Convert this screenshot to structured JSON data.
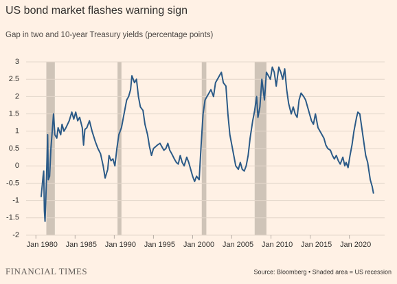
{
  "chart_data": {
    "type": "line",
    "title": "US bond market flashes warning sign",
    "subtitle": "Gap in two and 10-year Treasury yields (percentage points)",
    "source": "Source: Bloomberg • Shaded area = US recession",
    "brand": "FINANCIAL TIMES",
    "color": "#2b5a87",
    "recession_color": "#cfc4b8",
    "grid": true,
    "xlim": [
      "1978-10",
      "2024-07"
    ],
    "xticks": [
      {
        "value": "1980-01",
        "label": "Jan 1980"
      },
      {
        "value": "1985-01",
        "label": "Jan 1985"
      },
      {
        "value": "1990-01",
        "label": "Jan 1990"
      },
      {
        "value": "1995-01",
        "label": "Jan 1995"
      },
      {
        "value": "2000-01",
        "label": "Jan 2000"
      },
      {
        "value": "2005-01",
        "label": "Jan 2005"
      },
      {
        "value": "2010-01",
        "label": "Jan 2010"
      },
      {
        "value": "2015-01",
        "label": "Jan 2015"
      },
      {
        "value": "2020-01",
        "label": "Jan 2020"
      }
    ],
    "ylim": [
      -2,
      3
    ],
    "yticks": [
      3,
      2.5,
      2,
      1.5,
      1,
      0.5,
      0,
      -0.5,
      -1,
      -1.5,
      -2
    ],
    "recessions": [
      [
        "1981-05",
        "1982-06"
      ],
      [
        "1990-06",
        "1990-12"
      ],
      [
        "2001-03",
        "2001-10"
      ],
      [
        "2007-12",
        "2009-06"
      ]
    ],
    "x": [
      "1980-09",
      "1980-12",
      "1981-01",
      "1981-02",
      "1981-03",
      "1981-05",
      "1981-07",
      "1981-08",
      "1981-10",
      "1981-12",
      "1982-02",
      "1982-04",
      "1982-06",
      "1982-09",
      "1982-11",
      "1983-01",
      "1983-03",
      "1983-05",
      "1983-08",
      "1983-11",
      "1984-04",
      "1984-08",
      "1984-11",
      "1985-02",
      "1985-05",
      "1985-08",
      "1985-12",
      "1986-02",
      "1986-04",
      "1986-07",
      "1986-11",
      "1987-03",
      "1987-08",
      "1987-12",
      "1988-04",
      "1988-08",
      "1988-11",
      "1989-03",
      "1989-05",
      "1989-08",
      "1989-11",
      "1990-02",
      "1990-05",
      "1990-08",
      "1990-12",
      "1991-04",
      "1991-08",
      "1991-11",
      "1992-02",
      "1992-04",
      "1992-08",
      "1992-11",
      "1993-02",
      "1993-05",
      "1993-09",
      "1993-12",
      "1994-04",
      "1994-07",
      "1994-10",
      "1995-01",
      "1995-04",
      "1995-07",
      "1995-11",
      "1996-02",
      "1996-05",
      "1996-08",
      "1996-11",
      "1997-02",
      "1997-05",
      "1997-09",
      "1997-12",
      "1998-03",
      "1998-06",
      "1998-09",
      "1998-12",
      "1999-04",
      "1999-07",
      "1999-10",
      "2000-01",
      "2000-04",
      "2000-07",
      "2000-11",
      "2001-02",
      "2001-05",
      "2001-08",
      "2001-11",
      "2002-02",
      "2002-05",
      "2002-09",
      "2002-12",
      "2003-03",
      "2003-06",
      "2003-09",
      "2003-12",
      "2004-04",
      "2004-07",
      "2004-10",
      "2005-01",
      "2005-04",
      "2005-07",
      "2005-11",
      "2006-02",
      "2006-05",
      "2006-08",
      "2006-11",
      "2007-02",
      "2007-05",
      "2007-09",
      "2007-12",
      "2008-03",
      "2008-05",
      "2008-08",
      "2008-11",
      "2009-03",
      "2009-06",
      "2009-09",
      "2009-12",
      "2010-03",
      "2010-06",
      "2010-09",
      "2011-01",
      "2011-04",
      "2011-07",
      "2011-10",
      "2012-01",
      "2012-04",
      "2012-08",
      "2012-11",
      "2013-02",
      "2013-05",
      "2013-08",
      "2013-11",
      "2014-03",
      "2014-06",
      "2014-09",
      "2014-12",
      "2015-03",
      "2015-06",
      "2015-09",
      "2016-01",
      "2016-04",
      "2016-07",
      "2016-10",
      "2017-01",
      "2017-04",
      "2017-08",
      "2017-11",
      "2018-02",
      "2018-05",
      "2018-08",
      "2018-11",
      "2019-03",
      "2019-06",
      "2019-08",
      "2019-11",
      "2020-02",
      "2020-05",
      "2020-08",
      "2020-12",
      "2021-02",
      "2021-05",
      "2021-08",
      "2021-11",
      "2022-02",
      "2022-05",
      "2022-09",
      "2022-12",
      "2023-02"
    ],
    "values": [
      -0.9,
      -0.3,
      -0.15,
      -1.3,
      -1.6,
      -0.5,
      0.9,
      -0.4,
      -0.3,
      0.5,
      1.0,
      1.5,
      0.9,
      0.8,
      1.1,
      1.0,
      0.9,
      1.2,
      1.0,
      1.1,
      1.3,
      1.55,
      1.35,
      1.55,
      1.3,
      1.4,
      1.1,
      0.6,
      1.05,
      1.1,
      1.3,
      1.0,
      0.7,
      0.5,
      0.35,
      0.0,
      -0.35,
      -0.1,
      0.3,
      0.15,
      0.2,
      0.0,
      0.5,
      0.9,
      1.1,
      1.5,
      1.9,
      2.0,
      2.2,
      2.6,
      2.4,
      2.5,
      2.0,
      1.7,
      1.6,
      1.2,
      0.9,
      0.55,
      0.3,
      0.5,
      0.55,
      0.6,
      0.65,
      0.55,
      0.45,
      0.5,
      0.65,
      0.45,
      0.35,
      0.2,
      0.1,
      0.05,
      0.3,
      0.1,
      0.0,
      0.25,
      0.1,
      -0.1,
      -0.3,
      -0.45,
      -0.3,
      -0.4,
      0.6,
      1.5,
      1.9,
      2.0,
      2.1,
      2.2,
      2.0,
      2.4,
      2.5,
      2.6,
      2.7,
      2.4,
      2.3,
      1.5,
      0.9,
      0.6,
      0.3,
      0.0,
      -0.1,
      0.1,
      -0.1,
      -0.15,
      0.0,
      0.3,
      0.8,
      1.3,
      1.6,
      2.0,
      1.4,
      1.7,
      2.5,
      1.9,
      2.7,
      2.6,
      2.5,
      2.85,
      2.7,
      2.3,
      2.85,
      2.7,
      2.5,
      2.8,
      2.2,
      1.8,
      1.5,
      1.7,
      1.5,
      1.4,
      1.9,
      2.1,
      2.0,
      1.9,
      1.7,
      1.5,
      1.3,
      1.2,
      1.5,
      1.1,
      1.0,
      0.9,
      0.8,
      0.6,
      0.5,
      0.45,
      0.3,
      0.2,
      0.3,
      0.15,
      0.05,
      0.25,
      0.0,
      0.1,
      -0.05,
      0.3,
      0.6,
      1.0,
      1.4,
      1.55,
      1.5,
      1.1,
      0.7,
      0.3,
      0.1,
      -0.4,
      -0.6,
      -0.8
    ]
  }
}
